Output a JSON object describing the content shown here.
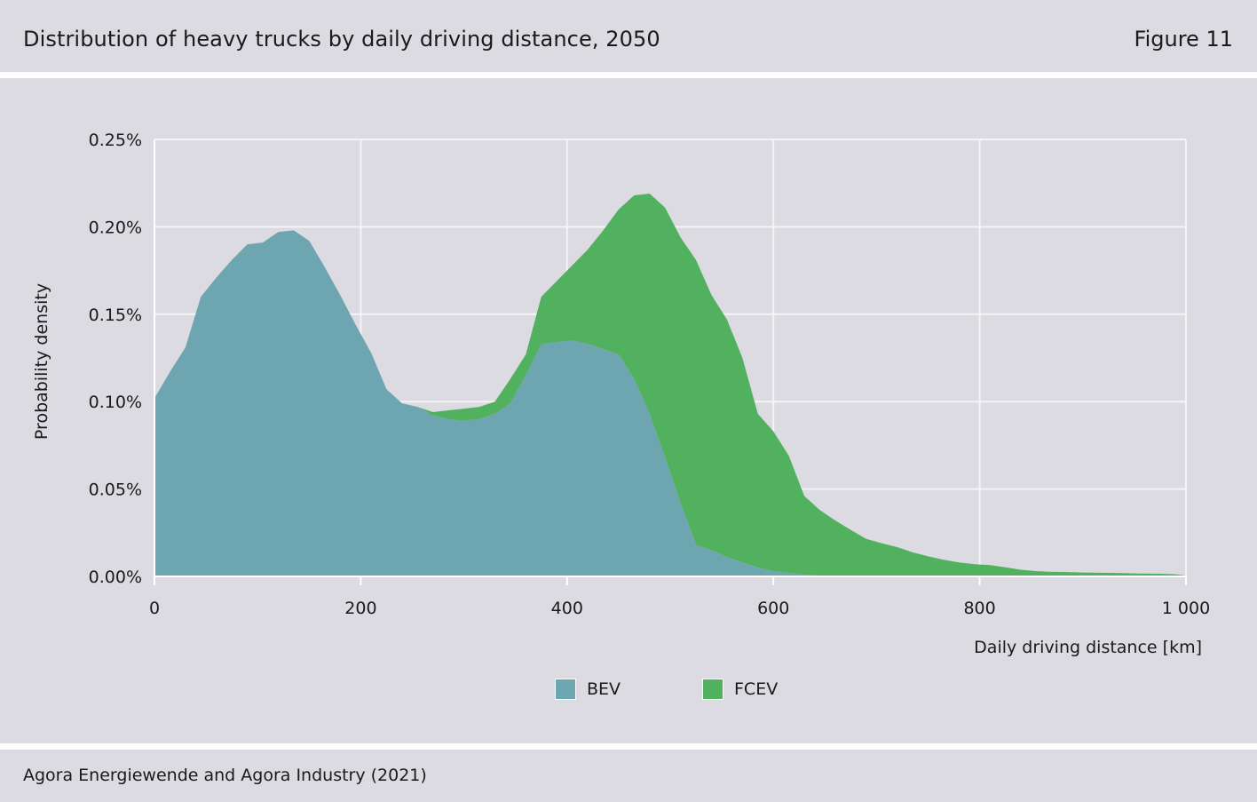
{
  "header": {
    "title": "Distribution of heavy trucks by daily driving distance, 2050",
    "figure_label": "Figure 11"
  },
  "footer": {
    "source": "Agora Energiewende and Agora Industry (2021)"
  },
  "colors": {
    "bev": "#6da5b0",
    "fcev": "#52b15e",
    "grid": "#f4f4f6",
    "axis": "#ffffff"
  },
  "chart_data": {
    "type": "area",
    "xlabel": "Daily driving distance [km]",
    "ylabel": "Probability density",
    "xlim": [
      0,
      1000
    ],
    "ylim": [
      0,
      0.25
    ],
    "x_ticks": [
      0,
      200,
      400,
      600,
      800,
      1000
    ],
    "x_tick_labels": [
      "0",
      "200",
      "400",
      "600",
      "800",
      "1 000"
    ],
    "y_ticks": [
      0,
      0.05,
      0.1,
      0.15,
      0.2,
      0.25
    ],
    "y_tick_labels": [
      "0.00%",
      "0.05%",
      "0.10%",
      "0.15%",
      "0.20%",
      "0.25%"
    ],
    "grid": true,
    "legend_position": "bottom-center",
    "x": [
      0,
      15,
      30,
      45,
      60,
      75,
      90,
      105,
      120,
      135,
      150,
      165,
      180,
      195,
      210,
      225,
      240,
      255,
      270,
      285,
      300,
      315,
      330,
      345,
      360,
      375,
      390,
      405,
      420,
      435,
      450,
      465,
      480,
      495,
      510,
      525,
      540,
      555,
      570,
      585,
      600,
      615,
      630,
      645,
      660,
      675,
      690,
      705,
      720,
      735,
      750,
      765,
      780,
      795,
      810,
      825,
      840,
      855,
      870,
      885,
      900,
      915,
      930,
      945,
      960,
      975,
      990,
      1000
    ],
    "series": [
      {
        "name": "BEV",
        "values": [
          0.102,
          0.117,
          0.131,
          0.16,
          0.171,
          0.181,
          0.19,
          0.191,
          0.197,
          0.198,
          0.192,
          0.177,
          0.161,
          0.144,
          0.128,
          0.107,
          0.099,
          0.097,
          0.092,
          0.09,
          0.089,
          0.09,
          0.093,
          0.099,
          0.115,
          0.133,
          0.134,
          0.135,
          0.133,
          0.13,
          0.127,
          0.113,
          0.093,
          0.068,
          0.042,
          0.018,
          0.015,
          0.011,
          0.008,
          0.005,
          0.003,
          0.002,
          0.001,
          0.0005,
          0.0002,
          0.0001,
          0.0,
          0.0,
          0.0,
          0.0,
          0.0,
          0.0,
          0.0,
          0.0,
          0.0,
          0.0,
          0.0,
          0.0,
          0.0,
          0.0,
          0.0,
          0.0,
          0.0,
          0.0,
          0.0,
          0.0,
          0.0,
          0.0
        ]
      },
      {
        "name": "FCEV",
        "values": [
          0.0,
          0.0,
          0.0,
          0.0,
          0.0,
          0.0,
          0.0,
          0.0,
          0.0,
          0.0,
          0.0,
          0.0,
          0.0,
          0.0,
          0.0,
          0.0,
          0.0,
          0.0,
          0.002,
          0.005,
          0.007,
          0.007,
          0.007,
          0.014,
          0.012,
          0.027,
          0.035,
          0.043,
          0.054,
          0.068,
          0.083,
          0.105,
          0.126,
          0.143,
          0.152,
          0.163,
          0.146,
          0.136,
          0.117,
          0.088,
          0.08,
          0.067,
          0.045,
          0.0375,
          0.0318,
          0.0265,
          0.0215,
          0.019,
          0.0168,
          0.0138,
          0.0115,
          0.0095,
          0.008,
          0.007,
          0.0065,
          0.0052,
          0.0038,
          0.003,
          0.0026,
          0.0025,
          0.0022,
          0.0021,
          0.002,
          0.0018,
          0.0016,
          0.0015,
          0.0012,
          0.0005
        ]
      }
    ]
  }
}
